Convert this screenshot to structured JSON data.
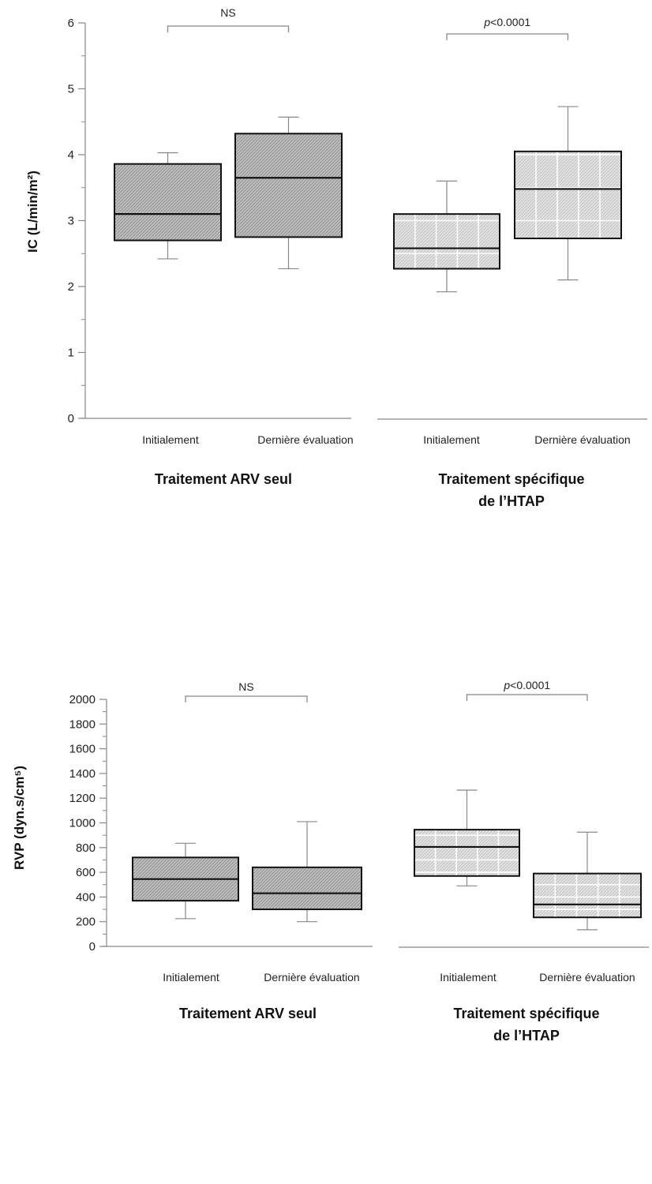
{
  "chart_data": [
    {
      "type": "box",
      "ylabel": "IC (L/min/m²)",
      "ylim": [
        0,
        6
      ],
      "yticks": [
        "0",
        "1",
        "2",
        "3",
        "4",
        "5",
        "6"
      ],
      "categories": [
        "Initialement",
        "Dernière évaluation",
        "Initialement",
        "Dernière évaluation"
      ],
      "groups": [
        {
          "label_lines": [
            "Traitement ARV seul"
          ],
          "annotation": "NS",
          "annotation_italic_prefix": "",
          "fill": "dark"
        },
        {
          "label_lines": [
            "Traitement spécifique",
            "de l’HTAP"
          ],
          "annotation": "<0.0001",
          "annotation_italic_prefix": "p",
          "fill": "light"
        }
      ],
      "boxes": [
        {
          "group": 0,
          "min": 2.42,
          "q1": 2.7,
          "median": 3.1,
          "q3": 3.86,
          "max": 4.03
        },
        {
          "group": 0,
          "min": 2.27,
          "q1": 2.75,
          "median": 3.65,
          "q3": 4.32,
          "max": 4.57
        },
        {
          "group": 1,
          "min": 1.92,
          "q1": 2.27,
          "median": 2.58,
          "q3": 3.1,
          "max": 3.6
        },
        {
          "group": 1,
          "min": 2.1,
          "q1": 2.73,
          "median": 3.48,
          "q3": 4.05,
          "max": 4.73
        }
      ]
    },
    {
      "type": "box",
      "ylabel": "RVP (dyn.s/cm⁵)",
      "ylim": [
        0,
        2000
      ],
      "yticks": [
        "0",
        "200",
        "400",
        "600",
        "800",
        "1000",
        "1200",
        "1400",
        "1600",
        "1800",
        "2000"
      ],
      "categories": [
        "Initialement",
        "Dernière évaluation",
        "Initialement",
        "Dernière évaluation"
      ],
      "groups": [
        {
          "label_lines": [
            "Traitement ARV seul"
          ],
          "annotation": "NS",
          "annotation_italic_prefix": "",
          "fill": "dark"
        },
        {
          "label_lines": [
            "Traitement spécifique",
            "de l’HTAP"
          ],
          "annotation": "<0.0001",
          "annotation_italic_prefix": "p",
          "fill": "light"
        }
      ],
      "boxes": [
        {
          "group": 0,
          "min": 225,
          "q1": 370,
          "median": 545,
          "q3": 720,
          "max": 835
        },
        {
          "group": 0,
          "min": 200,
          "q1": 300,
          "median": 430,
          "q3": 640,
          "max": 1010
        },
        {
          "group": 1,
          "min": 490,
          "q1": 570,
          "median": 805,
          "q3": 945,
          "max": 1265
        },
        {
          "group": 1,
          "min": 135,
          "q1": 235,
          "median": 340,
          "q3": 590,
          "max": 925
        }
      ]
    }
  ],
  "colors": {
    "dark_fill": "#b9b9b9",
    "light_fill": "#dcdcdc",
    "stroke": "#111111",
    "whisker": "#888888",
    "axis": "#888888"
  }
}
